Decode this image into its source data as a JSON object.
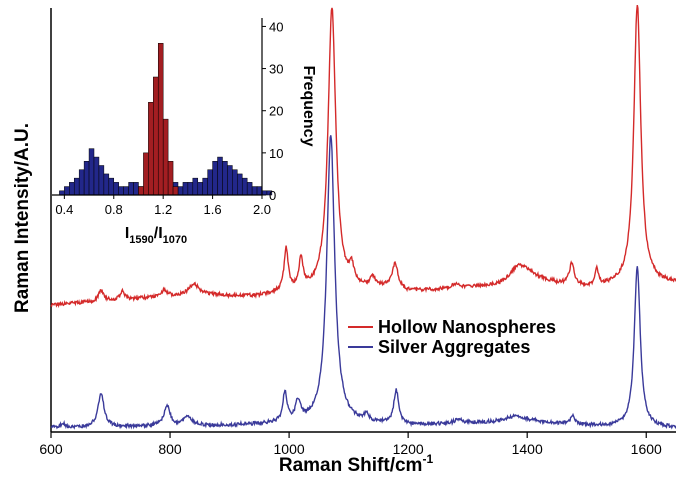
{
  "chart_data": [
    {
      "type": "line",
      "xlabel": "Raman Shift/cm",
      "xlabel_sup": "-1",
      "ylabel": "Raman Intensity/A.U.",
      "xlim": [
        600,
        1650
      ],
      "ylim": [
        0,
        100
      ],
      "xticks": [
        "600",
        "800",
        "1000",
        "1200",
        "1400",
        "1600"
      ],
      "legend_position": "center-right",
      "colors": {
        "Hollow Nanospheres": "#d42a2a",
        "Silver Aggregates": "#3a3a9a"
      },
      "series": [
        {
          "name": "Hollow Nanospheres",
          "baseline": [
            [
              600,
              30
            ],
            [
              650,
              30.5
            ],
            [
              700,
              31
            ],
            [
              800,
              32
            ],
            [
              850,
              32.5
            ],
            [
              900,
              32
            ],
            [
              950,
              32
            ],
            [
              1000,
              33
            ],
            [
              1050,
              33
            ],
            [
              1100,
              33
            ],
            [
              1150,
              34
            ],
            [
              1200,
              33
            ],
            [
              1250,
              33.5
            ],
            [
              1300,
              34
            ],
            [
              1350,
              34.5
            ],
            [
              1400,
              37
            ],
            [
              1450,
              35
            ],
            [
              1500,
              34
            ],
            [
              1550,
              34.5
            ],
            [
              1600,
              35
            ],
            [
              1650,
              35
            ]
          ],
          "peaks": [
            [
              684,
              2.5,
              5
            ],
            [
              720,
              2,
              4
            ],
            [
              790,
              1.5,
              6
            ],
            [
              840,
              2.5,
              9
            ],
            [
              995,
              10,
              4
            ],
            [
              1020,
              7,
              4
            ],
            [
              1072,
              67,
              8
            ],
            [
              1105,
              4,
              5
            ],
            [
              1140,
              2,
              5
            ],
            [
              1178,
              6,
              6
            ],
            [
              1280,
              1,
              8
            ],
            [
              1385,
              3,
              15
            ],
            [
              1475,
              5,
              5
            ],
            [
              1517,
              4,
              3
            ],
            [
              1585,
              66,
              7
            ]
          ]
        },
        {
          "name": "Silver Aggregates",
          "baseline": [
            [
              600,
              1
            ],
            [
              700,
              1.2
            ],
            [
              800,
              1.5
            ],
            [
              900,
              1.5
            ],
            [
              1000,
              2
            ],
            [
              1100,
              2
            ],
            [
              1200,
              1.5
            ],
            [
              1300,
              2
            ],
            [
              1400,
              2.5
            ],
            [
              1500,
              1.5
            ],
            [
              1600,
              1
            ],
            [
              1650,
              1
            ]
          ],
          "peaks": [
            [
              620,
              1,
              4
            ],
            [
              684,
              8,
              6
            ],
            [
              795,
              4.5,
              6
            ],
            [
              830,
              2,
              8
            ],
            [
              993,
              7,
              4
            ],
            [
              1015,
              4.5,
              5
            ],
            [
              1070,
              68,
              8
            ],
            [
              1130,
              1.5,
              5
            ],
            [
              1180,
              8,
              5
            ],
            [
              1285,
              1,
              8
            ],
            [
              1380,
              1.2,
              20
            ],
            [
              1476,
              2,
              4
            ],
            [
              1585,
              38,
              6
            ]
          ]
        }
      ]
    },
    {
      "type": "bar",
      "xlabel": "I",
      "xlabel_sub1": "1590",
      "xlabel_sep": "/I",
      "xlabel_sub2": "1070",
      "ylabel": "Frequency",
      "xlim": [
        0.3,
        2.0
      ],
      "ylim": [
        0,
        42
      ],
      "xticks": [
        "0.4",
        "0.8",
        "1.2",
        "1.6",
        "2.0"
      ],
      "yticks": [
        "0",
        "10",
        "20",
        "30",
        "40"
      ],
      "bin_width": 0.04,
      "series": [
        {
          "name": "Silver Aggregates",
          "bin_start": 0.36,
          "values": [
            1,
            2,
            3,
            4,
            6,
            8,
            11,
            9,
            7,
            5,
            4,
            3,
            2,
            2,
            3,
            3,
            2,
            2,
            1,
            1,
            1,
            2,
            1,
            3,
            2,
            3,
            3,
            4,
            3,
            4,
            6,
            8,
            9,
            8,
            7,
            6,
            5,
            4,
            3,
            2,
            2,
            1,
            1
          ]
        },
        {
          "name": "Hollow Nanospheres",
          "bin_start": 1.0,
          "values": [
            2,
            10,
            22,
            28,
            36,
            18,
            8,
            2
          ]
        }
      ]
    }
  ],
  "legend": [
    {
      "label": "Hollow Nanospheres",
      "color": "#d42a2a"
    },
    {
      "label": "Silver Aggregates",
      "color": "#3a3a9a"
    }
  ]
}
